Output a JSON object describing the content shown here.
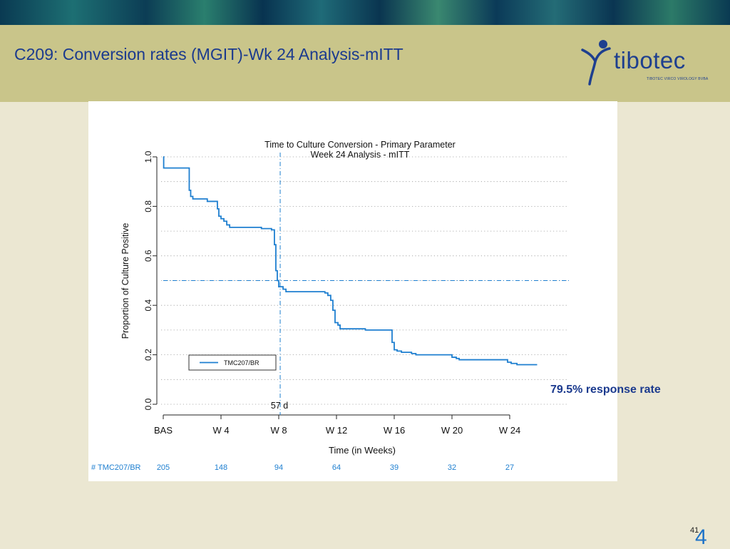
{
  "slide": {
    "title": "C209: Conversion rates (MGIT)-Wk 24 Analysis-mITT",
    "response_note": "79.5% response rate",
    "page_number": "41",
    "page_number_large": "4"
  },
  "logo": {
    "name": "tibotec",
    "tagline": "TIBOTEC VIRCO VIROLOGY BVBA",
    "color": "#1e3f8f"
  },
  "colors": {
    "title": "#1b3a8e",
    "series": "#1e7fd0",
    "band": "#c9c58a",
    "background": "#ebe7d2"
  },
  "chart_data": {
    "type": "line",
    "step": true,
    "title": "Time to Culture Conversion - Primary Parameter",
    "subtitle": "Week 24 Analysis - mITT",
    "xlabel": "Time (in Weeks)",
    "ylabel": "Proportion of Culture Positive",
    "xlim": [
      0,
      24
    ],
    "ylim": [
      0,
      1
    ],
    "x_ticks": [
      {
        "value": 0,
        "label": "BAS"
      },
      {
        "value": 4,
        "label": "W 4"
      },
      {
        "value": 8,
        "label": "W 8"
      },
      {
        "value": 12,
        "label": "W 12"
      },
      {
        "value": 16,
        "label": "W 16"
      },
      {
        "value": 20,
        "label": "W 20"
      },
      {
        "value": 24,
        "label": "W 24"
      }
    ],
    "y_ticks": [
      {
        "value": 0.0,
        "label": "0.0"
      },
      {
        "value": 0.2,
        "label": "0.2"
      },
      {
        "value": 0.4,
        "label": "0.4"
      },
      {
        "value": 0.6,
        "label": "0.6"
      },
      {
        "value": 0.8,
        "label": "0.8"
      },
      {
        "value": 1.0,
        "label": "1.0"
      }
    ],
    "grid": "dotted-horizontal",
    "legend": {
      "placement": "bottom-left",
      "entries": [
        "TMC207/BR"
      ]
    },
    "series": [
      {
        "name": "TMC207/BR",
        "points": [
          [
            0,
            1.0
          ],
          [
            0.03,
            0.955
          ],
          [
            1.75,
            0.955
          ],
          [
            1.8,
            0.865
          ],
          [
            1.9,
            0.84
          ],
          [
            2.05,
            0.83
          ],
          [
            3.0,
            0.83
          ],
          [
            3.05,
            0.82
          ],
          [
            3.7,
            0.82
          ],
          [
            3.75,
            0.79
          ],
          [
            3.85,
            0.76
          ],
          [
            4.0,
            0.75
          ],
          [
            4.2,
            0.74
          ],
          [
            4.4,
            0.725
          ],
          [
            4.6,
            0.715
          ],
          [
            6.7,
            0.715
          ],
          [
            6.8,
            0.71
          ],
          [
            7.4,
            0.71
          ],
          [
            7.5,
            0.705
          ],
          [
            7.65,
            0.705
          ],
          [
            7.7,
            0.645
          ],
          [
            7.8,
            0.54
          ],
          [
            7.9,
            0.5
          ],
          [
            8.0,
            0.475
          ],
          [
            8.3,
            0.465
          ],
          [
            8.5,
            0.455
          ],
          [
            11.0,
            0.455
          ],
          [
            11.2,
            0.45
          ],
          [
            11.4,
            0.44
          ],
          [
            11.6,
            0.42
          ],
          [
            11.75,
            0.38
          ],
          [
            11.9,
            0.33
          ],
          [
            12.1,
            0.32
          ],
          [
            12.25,
            0.305
          ],
          [
            13.9,
            0.305
          ],
          [
            14.0,
            0.3
          ],
          [
            15.75,
            0.3
          ],
          [
            15.85,
            0.25
          ],
          [
            16.0,
            0.22
          ],
          [
            16.2,
            0.215
          ],
          [
            16.5,
            0.21
          ],
          [
            17.2,
            0.205
          ],
          [
            17.5,
            0.2
          ],
          [
            19.8,
            0.2
          ],
          [
            20.0,
            0.19
          ],
          [
            20.3,
            0.185
          ],
          [
            20.5,
            0.18
          ],
          [
            23.7,
            0.18
          ],
          [
            23.85,
            0.17
          ],
          [
            24.1,
            0.165
          ],
          [
            24.5,
            0.16
          ],
          [
            25.9,
            0.16
          ]
        ]
      }
    ],
    "reference_lines": [
      {
        "axis": "x",
        "value": 8.1,
        "label": "57 d",
        "style": "dash-dot"
      },
      {
        "axis": "y",
        "value": 0.5,
        "style": "dash-dot"
      }
    ],
    "at_risk": {
      "label": "# TMC207/BR",
      "x": [
        0,
        4,
        8,
        12,
        16,
        20,
        24
      ],
      "counts": [
        "205",
        "148",
        "94",
        "64",
        "39",
        "32",
        "27"
      ]
    }
  }
}
